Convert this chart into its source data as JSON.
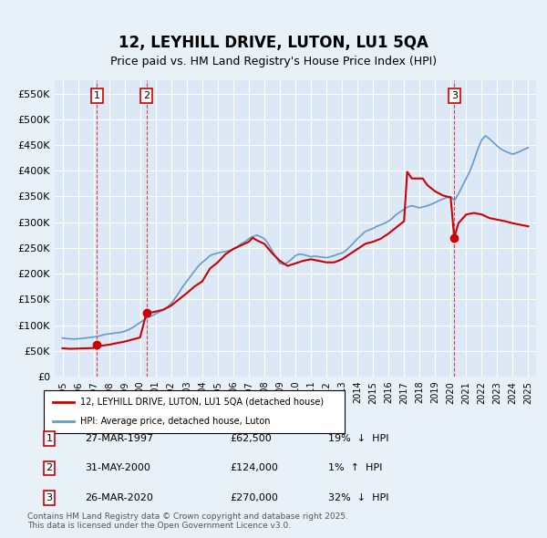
{
  "title": "12, LEYHILL DRIVE, LUTON, LU1 5QA",
  "subtitle": "Price paid vs. HM Land Registry's House Price Index (HPI)",
  "ylabel": "",
  "bg_color": "#e8f0f8",
  "plot_bg_color": "#dce8f5",
  "grid_color": "#ffffff",
  "ylim": [
    0,
    575000
  ],
  "yticks": [
    0,
    50000,
    100000,
    150000,
    200000,
    250000,
    300000,
    350000,
    400000,
    450000,
    500000,
    550000
  ],
  "ytick_labels": [
    "£0",
    "£50K",
    "£100K",
    "£150K",
    "£200K",
    "£250K",
    "£300K",
    "£350K",
    "£400K",
    "£450K",
    "£500K",
    "£550K"
  ],
  "xlim_start": 1994.5,
  "xlim_end": 2025.5,
  "transactions": [
    {
      "num": 1,
      "date": "27-MAR-1997",
      "price": 62500,
      "pct": "19%",
      "dir": "↓",
      "year": 1997.23
    },
    {
      "num": 2,
      "date": "31-MAY-2000",
      "price": 124000,
      "pct": "1%",
      "dir": "↑",
      "year": 2000.41
    },
    {
      "num": 3,
      "date": "26-MAR-2020",
      "price": 270000,
      "pct": "32%",
      "dir": "↓",
      "year": 2020.23
    }
  ],
  "legend_label_red": "12, LEYHILL DRIVE, LUTON, LU1 5QA (detached house)",
  "legend_label_blue": "HPI: Average price, detached house, Luton",
  "footer": "Contains HM Land Registry data © Crown copyright and database right 2025.\nThis data is licensed under the Open Government Licence v3.0.",
  "red_line_color": "#cc0000",
  "blue_line_color": "#6699cc",
  "hpi_data": {
    "years": [
      1995.0,
      1995.25,
      1995.5,
      1995.75,
      1996.0,
      1996.25,
      1996.5,
      1996.75,
      1997.0,
      1997.25,
      1997.5,
      1997.75,
      1998.0,
      1998.25,
      1998.5,
      1998.75,
      1999.0,
      1999.25,
      1999.5,
      1999.75,
      2000.0,
      2000.25,
      2000.5,
      2000.75,
      2001.0,
      2001.25,
      2001.5,
      2001.75,
      2002.0,
      2002.25,
      2002.5,
      2002.75,
      2003.0,
      2003.25,
      2003.5,
      2003.75,
      2004.0,
      2004.25,
      2004.5,
      2004.75,
      2005.0,
      2005.25,
      2005.5,
      2005.75,
      2006.0,
      2006.25,
      2006.5,
      2006.75,
      2007.0,
      2007.25,
      2007.5,
      2007.75,
      2008.0,
      2008.25,
      2008.5,
      2008.75,
      2009.0,
      2009.25,
      2009.5,
      2009.75,
      2010.0,
      2010.25,
      2010.5,
      2010.75,
      2011.0,
      2011.25,
      2011.5,
      2011.75,
      2012.0,
      2012.25,
      2012.5,
      2012.75,
      2013.0,
      2013.25,
      2013.5,
      2013.75,
      2014.0,
      2014.25,
      2014.5,
      2014.75,
      2015.0,
      2015.25,
      2015.5,
      2015.75,
      2016.0,
      2016.25,
      2016.5,
      2016.75,
      2017.0,
      2017.25,
      2017.5,
      2017.75,
      2018.0,
      2018.25,
      2018.5,
      2018.75,
      2019.0,
      2019.25,
      2019.5,
      2019.75,
      2020.0,
      2020.25,
      2020.5,
      2020.75,
      2021.0,
      2021.25,
      2021.5,
      2021.75,
      2022.0,
      2022.25,
      2022.5,
      2022.75,
      2023.0,
      2023.25,
      2023.5,
      2023.75,
      2024.0,
      2024.25,
      2024.5,
      2024.75,
      2025.0
    ],
    "values": [
      75000,
      74000,
      73500,
      73000,
      73500,
      74000,
      75000,
      76000,
      77000,
      78000,
      80000,
      82000,
      83000,
      84000,
      85000,
      86000,
      88000,
      91000,
      95000,
      100000,
      105000,
      110000,
      115000,
      118000,
      122000,
      126000,
      130000,
      135000,
      142000,
      152000,
      163000,
      175000,
      185000,
      195000,
      205000,
      215000,
      222000,
      228000,
      235000,
      238000,
      240000,
      242000,
      243000,
      245000,
      248000,
      252000,
      258000,
      262000,
      268000,
      272000,
      275000,
      272000,
      268000,
      258000,
      245000,
      232000,
      220000,
      218000,
      222000,
      228000,
      235000,
      238000,
      237000,
      235000,
      233000,
      234000,
      233000,
      232000,
      231000,
      233000,
      235000,
      238000,
      240000,
      245000,
      252000,
      260000,
      268000,
      275000,
      282000,
      285000,
      288000,
      292000,
      295000,
      298000,
      302000,
      308000,
      315000,
      320000,
      325000,
      330000,
      332000,
      330000,
      328000,
      330000,
      332000,
      335000,
      338000,
      342000,
      345000,
      348000,
      350000,
      342000,
      355000,
      370000,
      385000,
      400000,
      420000,
      442000,
      460000,
      468000,
      462000,
      455000,
      448000,
      442000,
      438000,
      435000,
      432000,
      435000,
      438000,
      442000,
      445000
    ]
  },
  "property_data": {
    "years": [
      1995.0,
      1995.5,
      1996.0,
      1996.5,
      1997.0,
      1997.23,
      1997.5,
      1998.0,
      1998.5,
      1999.0,
      1999.5,
      2000.0,
      2000.41,
      2000.8,
      2001.5,
      2002.0,
      2002.5,
      2003.0,
      2003.5,
      2004.0,
      2004.5,
      2005.0,
      2005.5,
      2006.0,
      2006.5,
      2007.0,
      2007.25,
      2007.5,
      2008.0,
      2008.5,
      2009.0,
      2009.5,
      2010.0,
      2010.5,
      2011.0,
      2011.5,
      2012.0,
      2012.5,
      2013.0,
      2013.5,
      2014.0,
      2014.5,
      2015.0,
      2015.5,
      2016.0,
      2016.5,
      2017.0,
      2017.2,
      2017.5,
      2018.0,
      2018.2,
      2018.5,
      2019.0,
      2019.5,
      2020.0,
      2020.23,
      2020.5,
      2021.0,
      2021.5,
      2022.0,
      2022.5,
      2023.0,
      2023.5,
      2024.0,
      2024.5,
      2025.0
    ],
    "values": [
      55000,
      54000,
      54500,
      55000,
      55500,
      62500,
      60000,
      62000,
      65000,
      68000,
      72000,
      76000,
      124000,
      125000,
      130000,
      138000,
      150000,
      162000,
      175000,
      185000,
      210000,
      222000,
      238000,
      248000,
      255000,
      262000,
      270000,
      265000,
      258000,
      240000,
      225000,
      215000,
      220000,
      225000,
      228000,
      225000,
      222000,
      222000,
      228000,
      238000,
      248000,
      258000,
      262000,
      268000,
      278000,
      290000,
      302000,
      398000,
      385000,
      385000,
      385000,
      372000,
      360000,
      352000,
      348000,
      270000,
      298000,
      315000,
      318000,
      315000,
      308000,
      305000,
      302000,
      298000,
      295000,
      292000
    ]
  }
}
